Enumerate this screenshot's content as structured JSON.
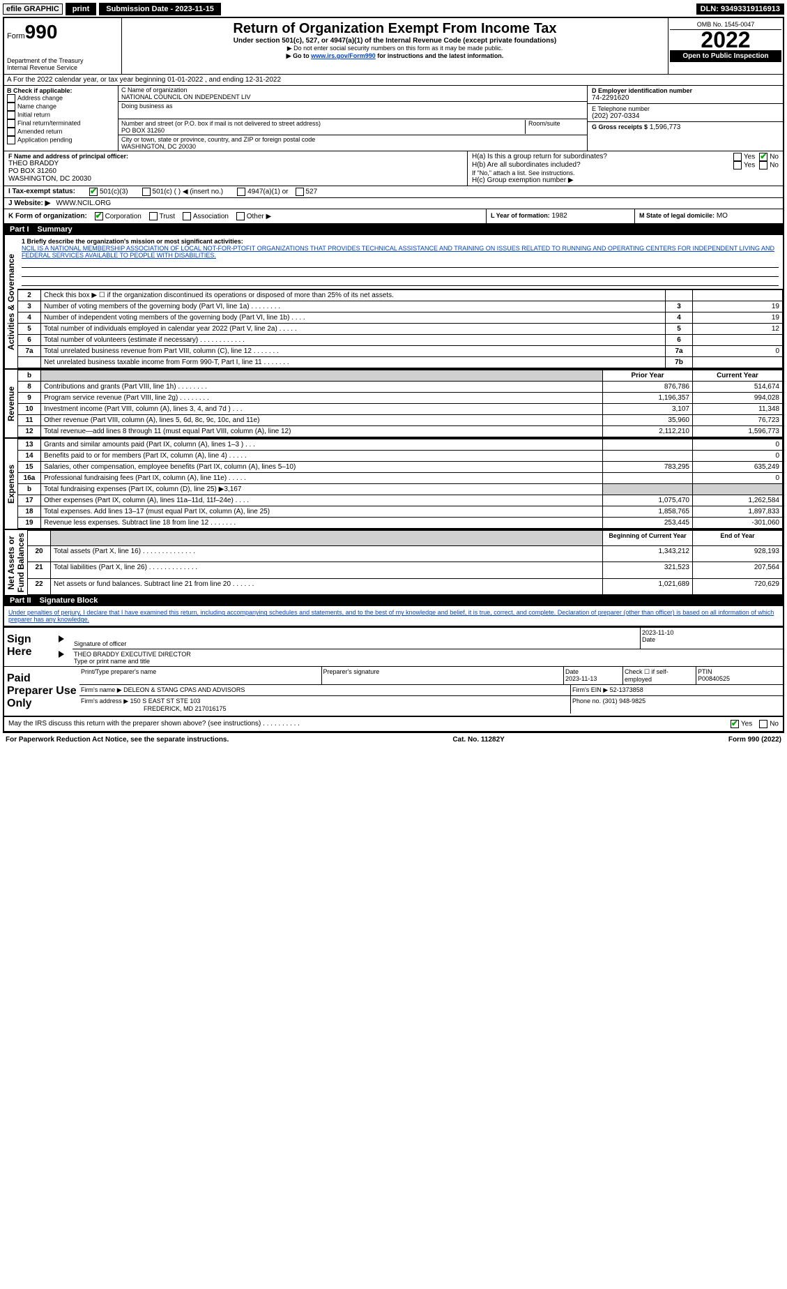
{
  "topbar": {
    "efile": "efile GRAPHIC",
    "print": "print",
    "submission_label": "Submission Date - 2023-11-15",
    "dln": "DLN: 93493319116913"
  },
  "header": {
    "form_word": "Form",
    "form_num": "990",
    "dept": "Department of the Treasury",
    "irs": "Internal Revenue Service",
    "title": "Return of Organization Exempt From Income Tax",
    "sub1": "Under section 501(c), 527, or 4947(a)(1) of the Internal Revenue Code (except private foundations)",
    "sub2": "▶ Do not enter social security numbers on this form as it may be made public.",
    "sub3_pre": "▶ Go to ",
    "sub3_link": "www.irs.gov/Form990",
    "sub3_post": " for instructions and the latest information.",
    "omb": "OMB No. 1545-0047",
    "year": "2022",
    "inspection": "Open to Public Inspection"
  },
  "section_a": "A For the 2022 calendar year, or tax year beginning 01-01-2022   , and ending 12-31-2022",
  "block_b": {
    "label": "B Check if applicable:",
    "items": [
      "Address change",
      "Name change",
      "Initial return",
      "Final return/terminated",
      "Amended return",
      "Application pending"
    ]
  },
  "block_c": {
    "name_label": "C Name of organization",
    "name": "NATIONAL COUNCIL ON INDEPENDENT LIV",
    "dba_label": "Doing business as",
    "dba": "",
    "addr_label": "Number and street (or P.O. box if mail is not delivered to street address)",
    "room_label": "Room/suite",
    "addr": "PO BOX 31260",
    "city_label": "City or town, state or province, country, and ZIP or foreign postal code",
    "city": "WASHINGTON, DC  20030"
  },
  "block_d": {
    "label": "D Employer identification number",
    "value": "74-2291620"
  },
  "block_e": {
    "label": "E Telephone number",
    "value": "(202) 207-0334"
  },
  "block_g": {
    "label": "G Gross receipts $",
    "value": "1,596,773"
  },
  "block_f": {
    "label": "F  Name and address of principal officer:",
    "name": "THEO BRADDY",
    "addr1": "PO BOX 31260",
    "addr2": "WASHINGTON, DC  20030"
  },
  "block_h": {
    "ha": "H(a)  Is this a group return for subordinates?",
    "hb": "H(b)  Are all subordinates included?",
    "hb_note": "If \"No,\" attach a list. See instructions.",
    "hc": "H(c)  Group exemption number ▶",
    "yes": "Yes",
    "no": "No"
  },
  "block_i": {
    "label": "I   Tax-exempt status:",
    "opts": [
      "501(c)(3)",
      "501(c) (   ) ◀ (insert no.)",
      "4947(a)(1) or",
      "527"
    ]
  },
  "block_j": {
    "label": "J   Website: ▶",
    "value": "WWW.NCIL.ORG"
  },
  "block_k": {
    "label": "K Form of organization:",
    "opts": [
      "Corporation",
      "Trust",
      "Association",
      "Other ▶"
    ]
  },
  "block_l": {
    "label": "L Year of formation:",
    "value": "1982"
  },
  "block_m": {
    "label": "M State of legal domicile:",
    "value": "MO"
  },
  "part1": {
    "label": "Part I",
    "title": "Summary"
  },
  "mission": {
    "label": "1  Briefly describe the organization's mission or most significant activities:",
    "text": "NCIL IS A NATIONAL MEMBERSHIP ASSOCIATION OF LOCAL NOT-FOR-PTOFIT ORGANIZATIONS THAT PROVIDES TECHNICAL ASSISTANCE AND TRAINING ON ISSUES RELATED TO RUNNING AND OPERATING CENTERS FOR INDEPENDENT LIVING AND FEDERAL SERVICES AVAILABLE TO PEOPLE WITH DISABILITIES."
  },
  "governance_rows": [
    {
      "n": "2",
      "desc": "Check this box ▶ ☐  if the organization discontinued its operations or disposed of more than 25% of its net assets.",
      "box": "",
      "val": ""
    },
    {
      "n": "3",
      "desc": "Number of voting members of the governing body (Part VI, line 1a)   .    .    .    .    .    .    .    .",
      "box": "3",
      "val": "19"
    },
    {
      "n": "4",
      "desc": "Number of independent voting members of the governing body (Part VI, line 1b)   .    .    .    .",
      "box": "4",
      "val": "19"
    },
    {
      "n": "5",
      "desc": "Total number of individuals employed in calendar year 2022 (Part V, line 2a)   .    .    .    .    .",
      "box": "5",
      "val": "12"
    },
    {
      "n": "6",
      "desc": "Total number of volunteers (estimate if necessary)   .    .    .    .    .    .    .    .    .    .    .    .",
      "box": "6",
      "val": ""
    },
    {
      "n": "7a",
      "desc": "Total unrelated business revenue from Part VIII, column (C), line 12   .    .    .    .    .    .    .",
      "box": "7a",
      "val": "0"
    },
    {
      "n": "",
      "desc": "Net unrelated business taxable income from Form 990-T, Part I, line 11   .    .    .    .    .    .    .",
      "box": "7b",
      "val": ""
    }
  ],
  "col_headers": {
    "prior": "Prior Year",
    "current": "Current Year",
    "bcy": "Beginning of Current Year",
    "eoy": "End of Year"
  },
  "revenue_rows": [
    {
      "n": "8",
      "desc": "Contributions and grants (Part VIII, line 1h)   .    .    .    .    .    .    .    .",
      "p": "876,786",
      "c": "514,674"
    },
    {
      "n": "9",
      "desc": "Program service revenue (Part VIII, line 2g)   .    .    .    .    .    .    .    .",
      "p": "1,196,357",
      "c": "994,028"
    },
    {
      "n": "10",
      "desc": "Investment income (Part VIII, column (A), lines 3, 4, and 7d )   .    .    .",
      "p": "3,107",
      "c": "11,348"
    },
    {
      "n": "11",
      "desc": "Other revenue (Part VIII, column (A), lines 5, 6d, 8c, 9c, 10c, and 11e)",
      "p": "35,960",
      "c": "76,723"
    },
    {
      "n": "12",
      "desc": "Total revenue—add lines 8 through 11 (must equal Part VIII, column (A), line 12)",
      "p": "2,112,210",
      "c": "1,596,773"
    }
  ],
  "expense_rows": [
    {
      "n": "13",
      "desc": "Grants and similar amounts paid (Part IX, column (A), lines 1–3 )   .    .    .",
      "p": "",
      "c": "0"
    },
    {
      "n": "14",
      "desc": "Benefits paid to or for members (Part IX, column (A), line 4)   .    .    .    .    .",
      "p": "",
      "c": "0"
    },
    {
      "n": "15",
      "desc": "Salaries, other compensation, employee benefits (Part IX, column (A), lines 5–10)",
      "p": "783,295",
      "c": "635,249"
    },
    {
      "n": "16a",
      "desc": "Professional fundraising fees (Part IX, column (A), line 11e)   .    .    .    .    .",
      "p": "",
      "c": "0"
    },
    {
      "n": "b",
      "desc": "Total fundraising expenses (Part IX, column (D), line 25) ▶3,167",
      "p": "GREY",
      "c": "GREY"
    },
    {
      "n": "17",
      "desc": "Other expenses (Part IX, column (A), lines 11a–11d, 11f–24e)   .    .    .    .",
      "p": "1,075,470",
      "c": "1,262,584"
    },
    {
      "n": "18",
      "desc": "Total expenses. Add lines 13–17 (must equal Part IX, column (A), line 25)",
      "p": "1,858,765",
      "c": "1,897,833"
    },
    {
      "n": "19",
      "desc": "Revenue less expenses. Subtract line 18 from line 12   .    .    .    .    .    .    .",
      "p": "253,445",
      "c": "-301,060"
    }
  ],
  "netassets_rows": [
    {
      "n": "20",
      "desc": "Total assets (Part X, line 16)   .    .    .    .    .    .    .    .    .    .    .    .    .    .",
      "p": "1,343,212",
      "c": "928,193"
    },
    {
      "n": "21",
      "desc": "Total liabilities (Part X, line 26)   .    .    .    .    .    .    .    .    .    .    .    .    .",
      "p": "321,523",
      "c": "207,564"
    },
    {
      "n": "22",
      "desc": "Net assets or fund balances. Subtract line 21 from line 20   .    .    .    .    .    .",
      "p": "1,021,689",
      "c": "720,629"
    }
  ],
  "part2": {
    "label": "Part II",
    "title": "Signature Block"
  },
  "penalties": "Under penalties of perjury, I declare that I have examined this return, including accompanying schedules and statements, and to the best of my knowledge and belief, it is true, correct, and complete. Declaration of preparer (other than officer) is based on all information of which preparer has any knowledge.",
  "sign": {
    "here": "Sign Here",
    "sig_label": "Signature of officer",
    "date": "2023-11-10",
    "date_label": "Date",
    "name": "THEO BRADDY  EXECUTIVE DIRECTOR",
    "name_label": "Type or print name and title"
  },
  "preparer": {
    "title": "Paid Preparer Use Only",
    "h1": "Print/Type preparer's name",
    "h2": "Preparer's signature",
    "h3": "Date",
    "h3v": "2023-11-13",
    "h4": "Check ☐ if self-employed",
    "h5": "PTIN",
    "h5v": "P00840525",
    "firm_label": "Firm's name   ▶",
    "firm": "DELEON & STANG CPAS AND ADVISORS",
    "ein_label": "Firm's EIN ▶",
    "ein": "52-1373858",
    "addr_label": "Firm's address ▶",
    "addr1": "150 S EAST ST STE 103",
    "addr2": "FREDERICK, MD  217016175",
    "phone_label": "Phone no.",
    "phone": "(301) 948-9825"
  },
  "discuss": "May the IRS discuss this return with the preparer shown above? (see instructions)   .    .    .    .    .    .    .    .    .    .",
  "footer": {
    "left": "For Paperwork Reduction Act Notice, see the separate instructions.",
    "mid": "Cat. No. 11282Y",
    "right": "Form 990 (2022)"
  }
}
